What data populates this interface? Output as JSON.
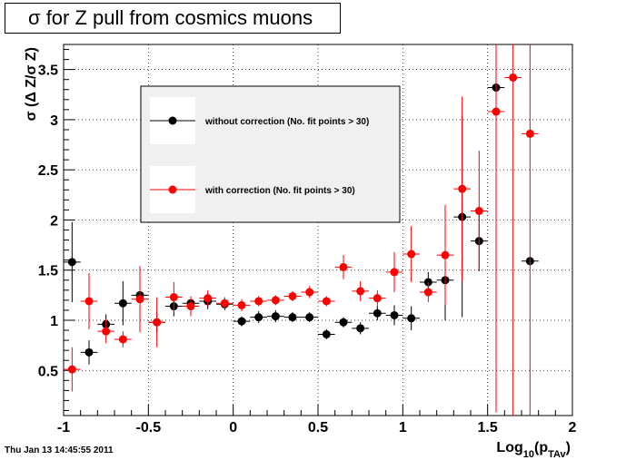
{
  "title": "σ for Z pull from cosmics muons",
  "timestamp": "Thu Jan 13 14:45:55 2011",
  "legend_labels": {
    "without": "without correction (No. fit points > 30)",
    "with": "with correction (No. fit points > 30)"
  },
  "chart_data": {
    "type": "scatter",
    "title": "σ for Z pull from cosmics muons",
    "xlabel": "Log_10(p_TAv)",
    "ylabel": "σ (Δ Z/σ Z)",
    "xlim": [
      -1,
      2
    ],
    "ylim": [
      0.05,
      3.75
    ],
    "x_ticks": [
      "-1",
      "-0.5",
      "0",
      "0.5",
      "1",
      "1.5",
      "2"
    ],
    "y_ticks": [
      "0.5",
      "1",
      "1.5",
      "2",
      "2.5",
      "3",
      "3.5"
    ],
    "grid": true,
    "legend_position": "top-center",
    "bin_half_width": 0.05,
    "series": [
      {
        "name": "without correction (No. fit points > 30)",
        "color": "#000000",
        "points": [
          {
            "x": -0.95,
            "y": 1.58,
            "err": 0.4
          },
          {
            "x": -0.85,
            "y": 0.68,
            "err": 0.12
          },
          {
            "x": -0.75,
            "y": 0.96,
            "err": 0.1
          },
          {
            "x": -0.65,
            "y": 1.17,
            "err": 0.22
          },
          {
            "x": -0.55,
            "y": 1.25,
            "err": 0.14
          },
          {
            "x": -0.45,
            "y": 0.98,
            "err": 0.1
          },
          {
            "x": -0.35,
            "y": 1.14,
            "err": 0.1
          },
          {
            "x": -0.25,
            "y": 1.17,
            "err": 0.06
          },
          {
            "x": -0.15,
            "y": 1.19,
            "err": 0.08
          },
          {
            "x": -0.05,
            "y": 1.16,
            "err": 0.06
          },
          {
            "x": 0.05,
            "y": 0.99,
            "err": 0.05
          },
          {
            "x": 0.15,
            "y": 1.03,
            "err": 0.06
          },
          {
            "x": 0.25,
            "y": 1.04,
            "err": 0.06
          },
          {
            "x": 0.35,
            "y": 1.03,
            "err": 0.05
          },
          {
            "x": 0.45,
            "y": 1.03,
            "err": 0.05
          },
          {
            "x": 0.55,
            "y": 0.86,
            "err": 0.05
          },
          {
            "x": 0.65,
            "y": 0.98,
            "err": 0.05
          },
          {
            "x": 0.75,
            "y": 0.92,
            "err": 0.06
          },
          {
            "x": 0.85,
            "y": 1.07,
            "err": 0.07
          },
          {
            "x": 0.95,
            "y": 1.05,
            "err": 0.1
          },
          {
            "x": 1.05,
            "y": 1.02,
            "err": 0.12
          },
          {
            "x": 1.15,
            "y": 1.38,
            "err": 0.1
          },
          {
            "x": 1.25,
            "y": 1.4,
            "err": 0.4
          },
          {
            "x": 1.35,
            "y": 2.03,
            "err": 1.0
          },
          {
            "x": 1.45,
            "y": 1.79,
            "err": 0.3
          },
          {
            "x": 1.55,
            "y": 3.32,
            "err": 3.0
          },
          {
            "x": 1.75,
            "y": 1.59,
            "err": 0.0
          }
        ]
      },
      {
        "name": "with correction (No. fit points > 30)",
        "color": "#ff0000",
        "points": [
          {
            "x": -0.95,
            "y": 0.51,
            "err": 0.22
          },
          {
            "x": -0.85,
            "y": 1.19,
            "err": 0.28
          },
          {
            "x": -0.75,
            "y": 0.89,
            "err": 0.12
          },
          {
            "x": -0.65,
            "y": 0.81,
            "err": 0.08
          },
          {
            "x": -0.55,
            "y": 1.21,
            "err": 0.33
          },
          {
            "x": -0.45,
            "y": 0.98,
            "err": 0.25
          },
          {
            "x": -0.35,
            "y": 1.23,
            "err": 0.15
          },
          {
            "x": -0.25,
            "y": 1.14,
            "err": 0.1
          },
          {
            "x": -0.15,
            "y": 1.22,
            "err": 0.08
          },
          {
            "x": -0.05,
            "y": 1.17,
            "err": 0.06
          },
          {
            "x": 0.05,
            "y": 1.15,
            "err": 0.06
          },
          {
            "x": 0.15,
            "y": 1.19,
            "err": 0.05
          },
          {
            "x": 0.25,
            "y": 1.2,
            "err": 0.05
          },
          {
            "x": 0.35,
            "y": 1.24,
            "err": 0.05
          },
          {
            "x": 0.45,
            "y": 1.28,
            "err": 0.06
          },
          {
            "x": 0.55,
            "y": 1.19,
            "err": 0.05
          },
          {
            "x": 0.65,
            "y": 1.53,
            "err": 0.12
          },
          {
            "x": 0.75,
            "y": 1.29,
            "err": 0.1
          },
          {
            "x": 0.85,
            "y": 1.22,
            "err": 0.08
          },
          {
            "x": 0.95,
            "y": 1.48,
            "err": 0.2
          },
          {
            "x": 1.05,
            "y": 1.66,
            "err": 0.28
          },
          {
            "x": 1.15,
            "y": 1.28,
            "err": 0.1
          },
          {
            "x": 1.25,
            "y": 1.65,
            "err": 0.5
          },
          {
            "x": 1.35,
            "y": 2.31,
            "err": 0.92
          },
          {
            "x": 1.45,
            "y": 2.09,
            "err": 0.6
          },
          {
            "x": 1.55,
            "y": 3.08,
            "err": 3.0
          },
          {
            "x": 1.65,
            "y": 3.42,
            "err": 3.5
          },
          {
            "x": 1.75,
            "y": 2.86,
            "err": 3.0
          }
        ]
      }
    ]
  }
}
